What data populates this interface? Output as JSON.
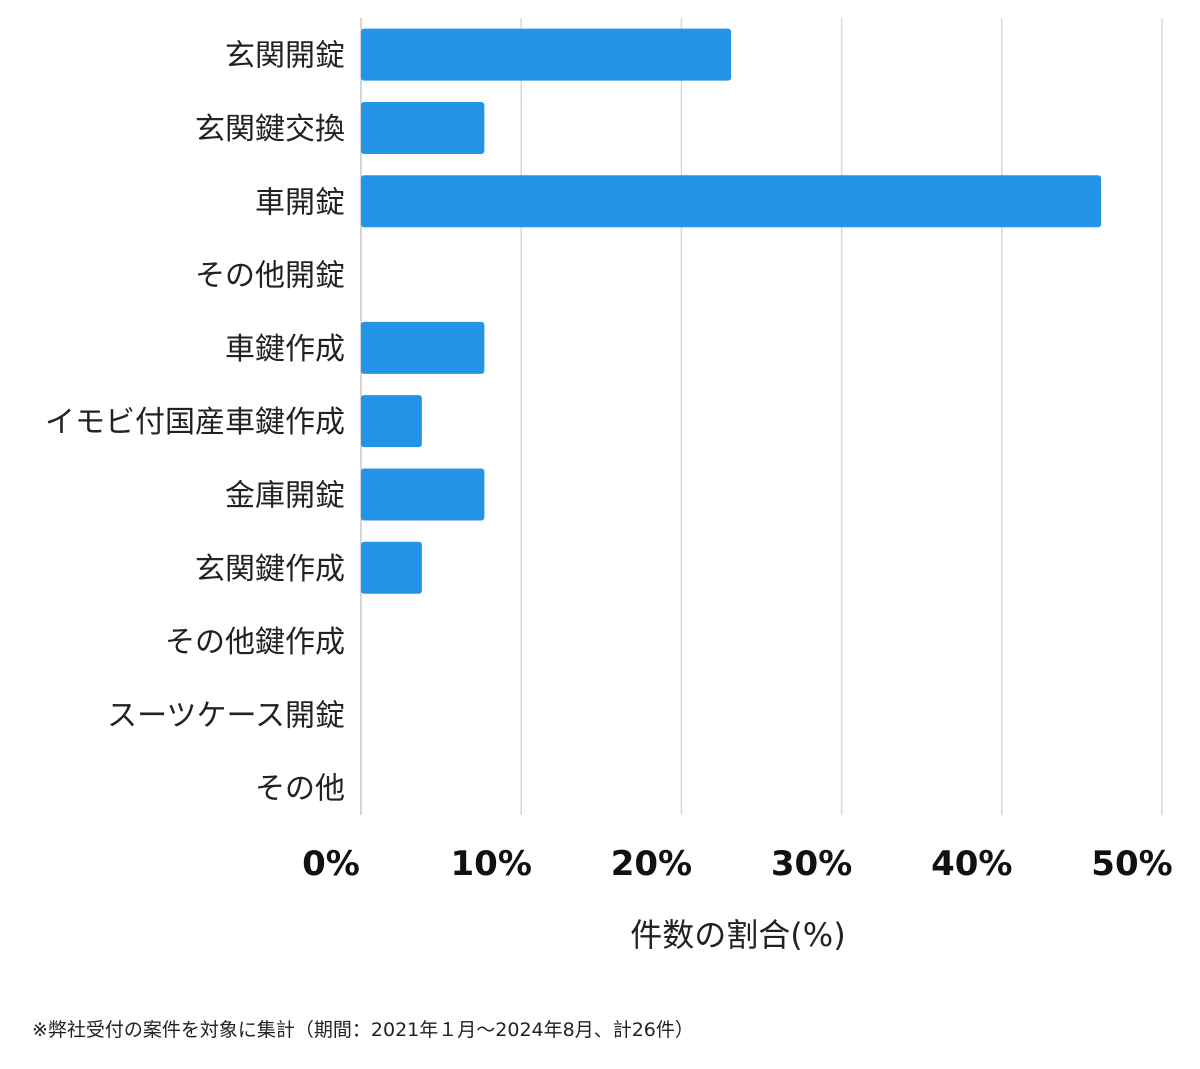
{
  "chart_data": {
    "type": "bar",
    "orientation": "horizontal",
    "categories": [
      "玄関開錠",
      "玄関鍵交換",
      "車開錠",
      "その他開錠",
      "車鍵作成",
      "イモビ付国産車鍵作成",
      "金庫開錠",
      "玄関鍵作成",
      "その他鍵作成",
      "スーツケース開錠",
      "その他"
    ],
    "values": [
      23.1,
      7.7,
      46.2,
      0,
      7.7,
      3.8,
      7.7,
      3.8,
      0,
      0,
      0
    ],
    "xlim": [
      0,
      50
    ],
    "xticks": [
      "0%",
      "10%",
      "20%",
      "30%",
      "40%",
      "50%"
    ],
    "xlabel": "件数の割合(%)",
    "ylabel": "",
    "grid": true,
    "bar_color": "#2494e6"
  },
  "footnote": "※弊社受付の案件を対象に集計（期間：2021年１月〜2024年8月、計26件）"
}
